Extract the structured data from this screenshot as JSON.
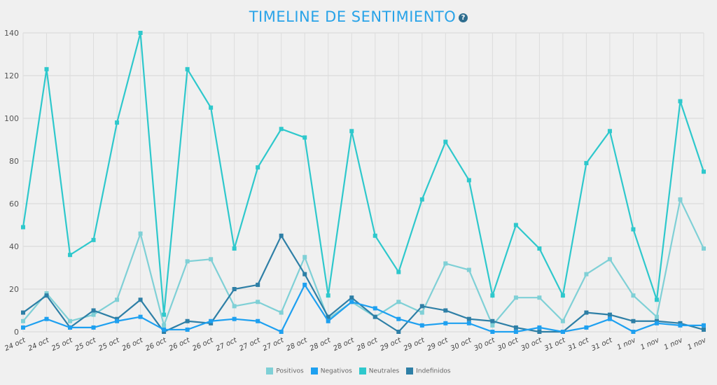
{
  "chart_data": {
    "type": "line",
    "title": "TIMELINE DE SENTIMIENTO",
    "help_icon": "question-circle-icon",
    "ylim": [
      0,
      140
    ],
    "yticks": [
      "140",
      "120",
      "100",
      "80",
      "60",
      "40",
      "20",
      "0"
    ],
    "grid": true,
    "legend_position": "bottom",
    "categories": [
      "24 oct",
      "24 oct",
      "25 oct",
      "25 oct",
      "25 oct",
      "26 oct",
      "26 oct",
      "26 oct",
      "26 oct",
      "27 oct",
      "27 oct",
      "27 oct",
      "28 oct",
      "28 oct",
      "28 oct",
      "28 oct",
      "29 oct",
      "29 oct",
      "29 oct",
      "30 oct",
      "30 oct",
      "30 oct",
      "30 oct",
      "31 oct",
      "31 oct",
      "31 oct",
      "1 nov",
      "1 nov",
      "1 nov",
      "1 nov"
    ],
    "series": [
      {
        "name": "Positivos",
        "color": "#7fd0d6",
        "values": [
          5,
          18,
          5,
          8,
          15,
          46,
          3,
          33,
          34,
          12,
          14,
          9,
          35,
          6,
          14,
          7,
          14,
          9,
          32,
          29,
          3,
          16,
          16,
          5,
          27,
          34,
          17,
          7,
          62,
          39
        ]
      },
      {
        "name": "Negativos",
        "color": "#1ea0f0",
        "values": [
          2,
          6,
          2,
          2,
          5,
          7,
          1,
          1,
          5,
          6,
          5,
          0,
          22,
          5,
          14,
          11,
          6,
          3,
          4,
          4,
          0,
          0,
          2,
          0,
          2,
          6,
          0,
          4,
          3,
          3
        ]
      },
      {
        "name": "Neutrales",
        "color": "#2ec8cc",
        "values": [
          49,
          123,
          36,
          43,
          98,
          140,
          8,
          123,
          105,
          39,
          77,
          95,
          91,
          17,
          94,
          45,
          28,
          62,
          89,
          71,
          17,
          50,
          39,
          17,
          79,
          94,
          48,
          15,
          108,
          75
        ]
      },
      {
        "name": "Indefinidos",
        "color": "#2e7fa6",
        "values": [
          9,
          17,
          2,
          10,
          6,
          15,
          0,
          5,
          4,
          20,
          22,
          45,
          27,
          7,
          16,
          7,
          0,
          12,
          10,
          6,
          5,
          2,
          0,
          0,
          9,
          8,
          5,
          5,
          4,
          1
        ]
      }
    ]
  }
}
